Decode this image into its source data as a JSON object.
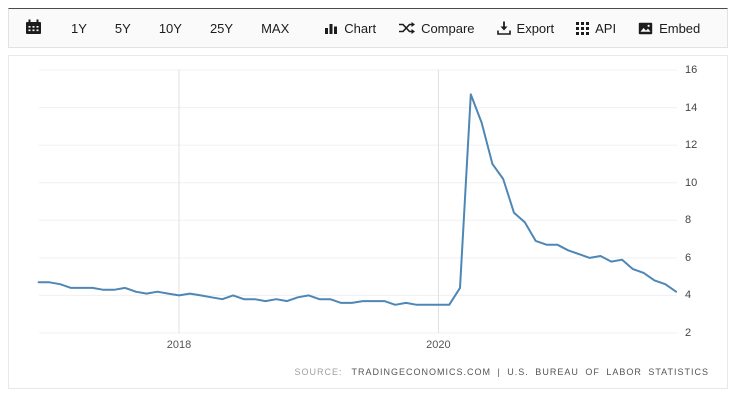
{
  "toolbar": {
    "ranges": [
      {
        "label": "1Y"
      },
      {
        "label": "5Y"
      },
      {
        "label": "10Y"
      },
      {
        "label": "25Y"
      },
      {
        "label": "MAX"
      }
    ],
    "actions": [
      {
        "label": "Chart",
        "icon": "bar-chart-icon"
      },
      {
        "label": "Compare",
        "icon": "shuffle-icon"
      },
      {
        "label": "Export",
        "icon": "download-icon"
      },
      {
        "label": "API",
        "icon": "grid-icon"
      },
      {
        "label": "Embed",
        "icon": "image-icon"
      }
    ]
  },
  "chart_data": {
    "type": "line",
    "line_color": "#4e87b5",
    "ylim": [
      2,
      16
    ],
    "xlim_years": [
      2016.92,
      2021.84
    ],
    "grid": true,
    "y_ticks": [
      2,
      4,
      6,
      8,
      10,
      12,
      14,
      16
    ],
    "x_ticks": [
      {
        "label": "2018",
        "year": 2018
      },
      {
        "label": "2020",
        "year": 2020
      }
    ],
    "series": [
      {
        "x": [
          "2016-12",
          "2017-01",
          "2017-02",
          "2017-03",
          "2017-04",
          "2017-05",
          "2017-06",
          "2017-07",
          "2017-08",
          "2017-09",
          "2017-10",
          "2017-11",
          "2017-12",
          "2018-01",
          "2018-02",
          "2018-03",
          "2018-04",
          "2018-05",
          "2018-06",
          "2018-07",
          "2018-08",
          "2018-09",
          "2018-10",
          "2018-11",
          "2018-12",
          "2019-01",
          "2019-02",
          "2019-03",
          "2019-04",
          "2019-05",
          "2019-06",
          "2019-07",
          "2019-08",
          "2019-09",
          "2019-10",
          "2019-11",
          "2019-12",
          "2020-01",
          "2020-02",
          "2020-03",
          "2020-04",
          "2020-05",
          "2020-06",
          "2020-07",
          "2020-08",
          "2020-09",
          "2020-10",
          "2020-11",
          "2020-12",
          "2021-01",
          "2021-02",
          "2021-03",
          "2021-04",
          "2021-05",
          "2021-06",
          "2021-07",
          "2021-08",
          "2021-09",
          "2021-10",
          "2021-11"
        ],
        "values": [
          4.7,
          4.7,
          4.6,
          4.4,
          4.4,
          4.4,
          4.3,
          4.3,
          4.4,
          4.2,
          4.1,
          4.2,
          4.1,
          4.0,
          4.1,
          4.0,
          3.9,
          3.8,
          4.0,
          3.8,
          3.8,
          3.7,
          3.8,
          3.7,
          3.9,
          4.0,
          3.8,
          3.8,
          3.6,
          3.6,
          3.7,
          3.7,
          3.7,
          3.5,
          3.6,
          3.5,
          3.5,
          3.5,
          3.5,
          4.4,
          14.7,
          13.2,
          11.0,
          10.2,
          8.4,
          7.9,
          6.9,
          6.7,
          6.7,
          6.4,
          6.2,
          6.0,
          6.1,
          5.8,
          5.9,
          5.4,
          5.2,
          4.8,
          4.6,
          4.2
        ]
      }
    ]
  },
  "footer": {
    "source_label": "SOURCE:",
    "source_text": "TRADINGECONOMICS.COM | U.S. BUREAU OF LABOR STATISTICS"
  }
}
